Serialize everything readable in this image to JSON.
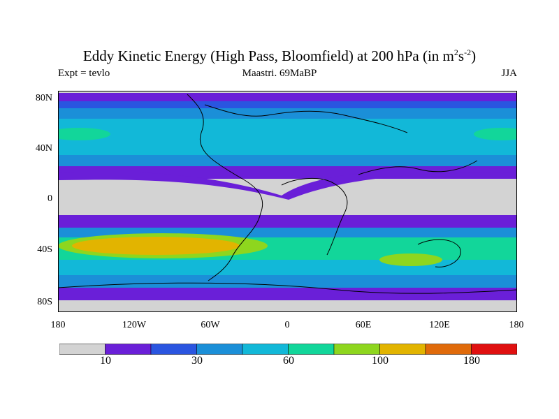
{
  "title": {
    "main": "Eddy Kinetic Energy (High Pass, Bloomfield) at 200 hPa (in m",
    "sup1": "2",
    "mid": "s",
    "sup2": "-2",
    "end": ")"
  },
  "subtitle": {
    "left": "Expt = tevlo",
    "center": "Maastri.  69MaBP",
    "right": "JJA"
  },
  "axes": {
    "y_ticks": [
      "80N",
      "40N",
      "0",
      "40S",
      "80S"
    ],
    "x_ticks": [
      "180",
      "120W",
      "60W",
      "0",
      "60E",
      "120E",
      "180"
    ]
  },
  "colorbar": {
    "colors": [
      "#d3d3d3",
      "#6a1fd8",
      "#2a55e0",
      "#1b8fd8",
      "#12b8d8",
      "#12d69a",
      "#8ed61e",
      "#e2b400",
      "#e06a0a",
      "#e01010"
    ],
    "labels": [
      "10",
      "30",
      "60",
      "100",
      "180"
    ]
  },
  "colors": {
    "band_low": "#d3d3d3",
    "band_10": "#6a1fd8",
    "band_20": "#2a55e0",
    "band_30": "#1b8fd8",
    "band_45": "#12b8d8",
    "band_60": "#12d69a",
    "band_80": "#8ed61e",
    "band_100": "#e2b400"
  }
}
